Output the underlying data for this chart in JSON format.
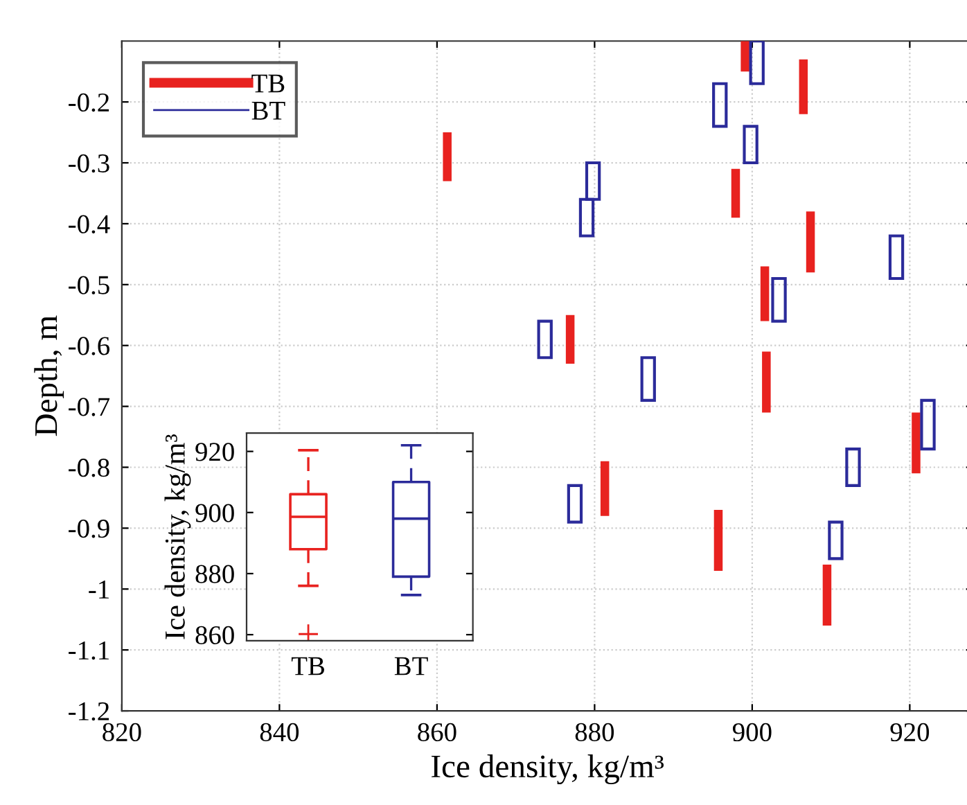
{
  "chart_data": [
    {
      "type": "bar",
      "xlabel": "Ice density, kg/m³",
      "ylabel": "Depth, m",
      "xlim": [
        820,
        928
      ],
      "xticks": [
        820,
        840,
        860,
        880,
        900,
        920
      ],
      "ylim": [
        -1.2,
        -0.1
      ],
      "yticks": [
        -1.2,
        -1.1,
        -1,
        -0.9,
        -0.8,
        -0.7,
        -0.6,
        -0.5,
        -0.4,
        -0.3,
        -0.2
      ],
      "grid": true,
      "legend": "top left",
      "series": [
        {
          "name": "TB",
          "color": "#e8221f",
          "x": [
            861.3,
            876.9,
            881.3,
            895.7,
            897.9,
            899.1,
            901.6,
            901.8,
            906.5,
            907.4,
            909.5,
            920.8
          ],
          "base": [
            -0.33,
            -0.63,
            -0.88,
            -0.97,
            -0.39,
            -0.15,
            -0.56,
            -0.71,
            -0.22,
            -0.48,
            -1.06,
            -0.81
          ],
          "values": [
            0.08,
            0.08,
            0.09,
            0.1,
            0.08,
            0.05,
            0.09,
            0.1,
            0.09,
            0.1,
            0.1,
            0.1
          ]
        },
        {
          "name": "BT",
          "color": "#2b2b9a",
          "x": [
            873.7,
            877.5,
            879.0,
            879.8,
            886.8,
            895.9,
            899.8,
            900.6,
            903.4,
            910.6,
            912.8,
            918.3,
            922.3
          ],
          "base": [
            -0.62,
            -0.89,
            -0.42,
            -0.36,
            -0.69,
            -0.24,
            -0.3,
            -0.17,
            -0.56,
            -0.95,
            -0.83,
            -0.49,
            -0.77
          ],
          "values": [
            0.06,
            0.06,
            0.06,
            0.06,
            0.07,
            0.07,
            0.06,
            0.07,
            0.07,
            0.06,
            0.06,
            0.07,
            0.08
          ]
        }
      ]
    },
    {
      "type": "box",
      "ylabel": "Ice density, kg/m³",
      "categories": [
        "TB",
        "BT"
      ],
      "colors": [
        "#e8221f",
        "#2b2b9a"
      ],
      "ylim": [
        858,
        926
      ],
      "yticks": [
        860,
        880,
        900,
        920
      ],
      "boxes": [
        {
          "low": 876,
          "q1": 888,
          "median": 898.6,
          "q3": 906,
          "high": 920.4,
          "outliers": [
            860.2
          ]
        },
        {
          "low": 873,
          "q1": 879,
          "median": 898,
          "q3": 910,
          "high": 922
        }
      ]
    }
  ]
}
